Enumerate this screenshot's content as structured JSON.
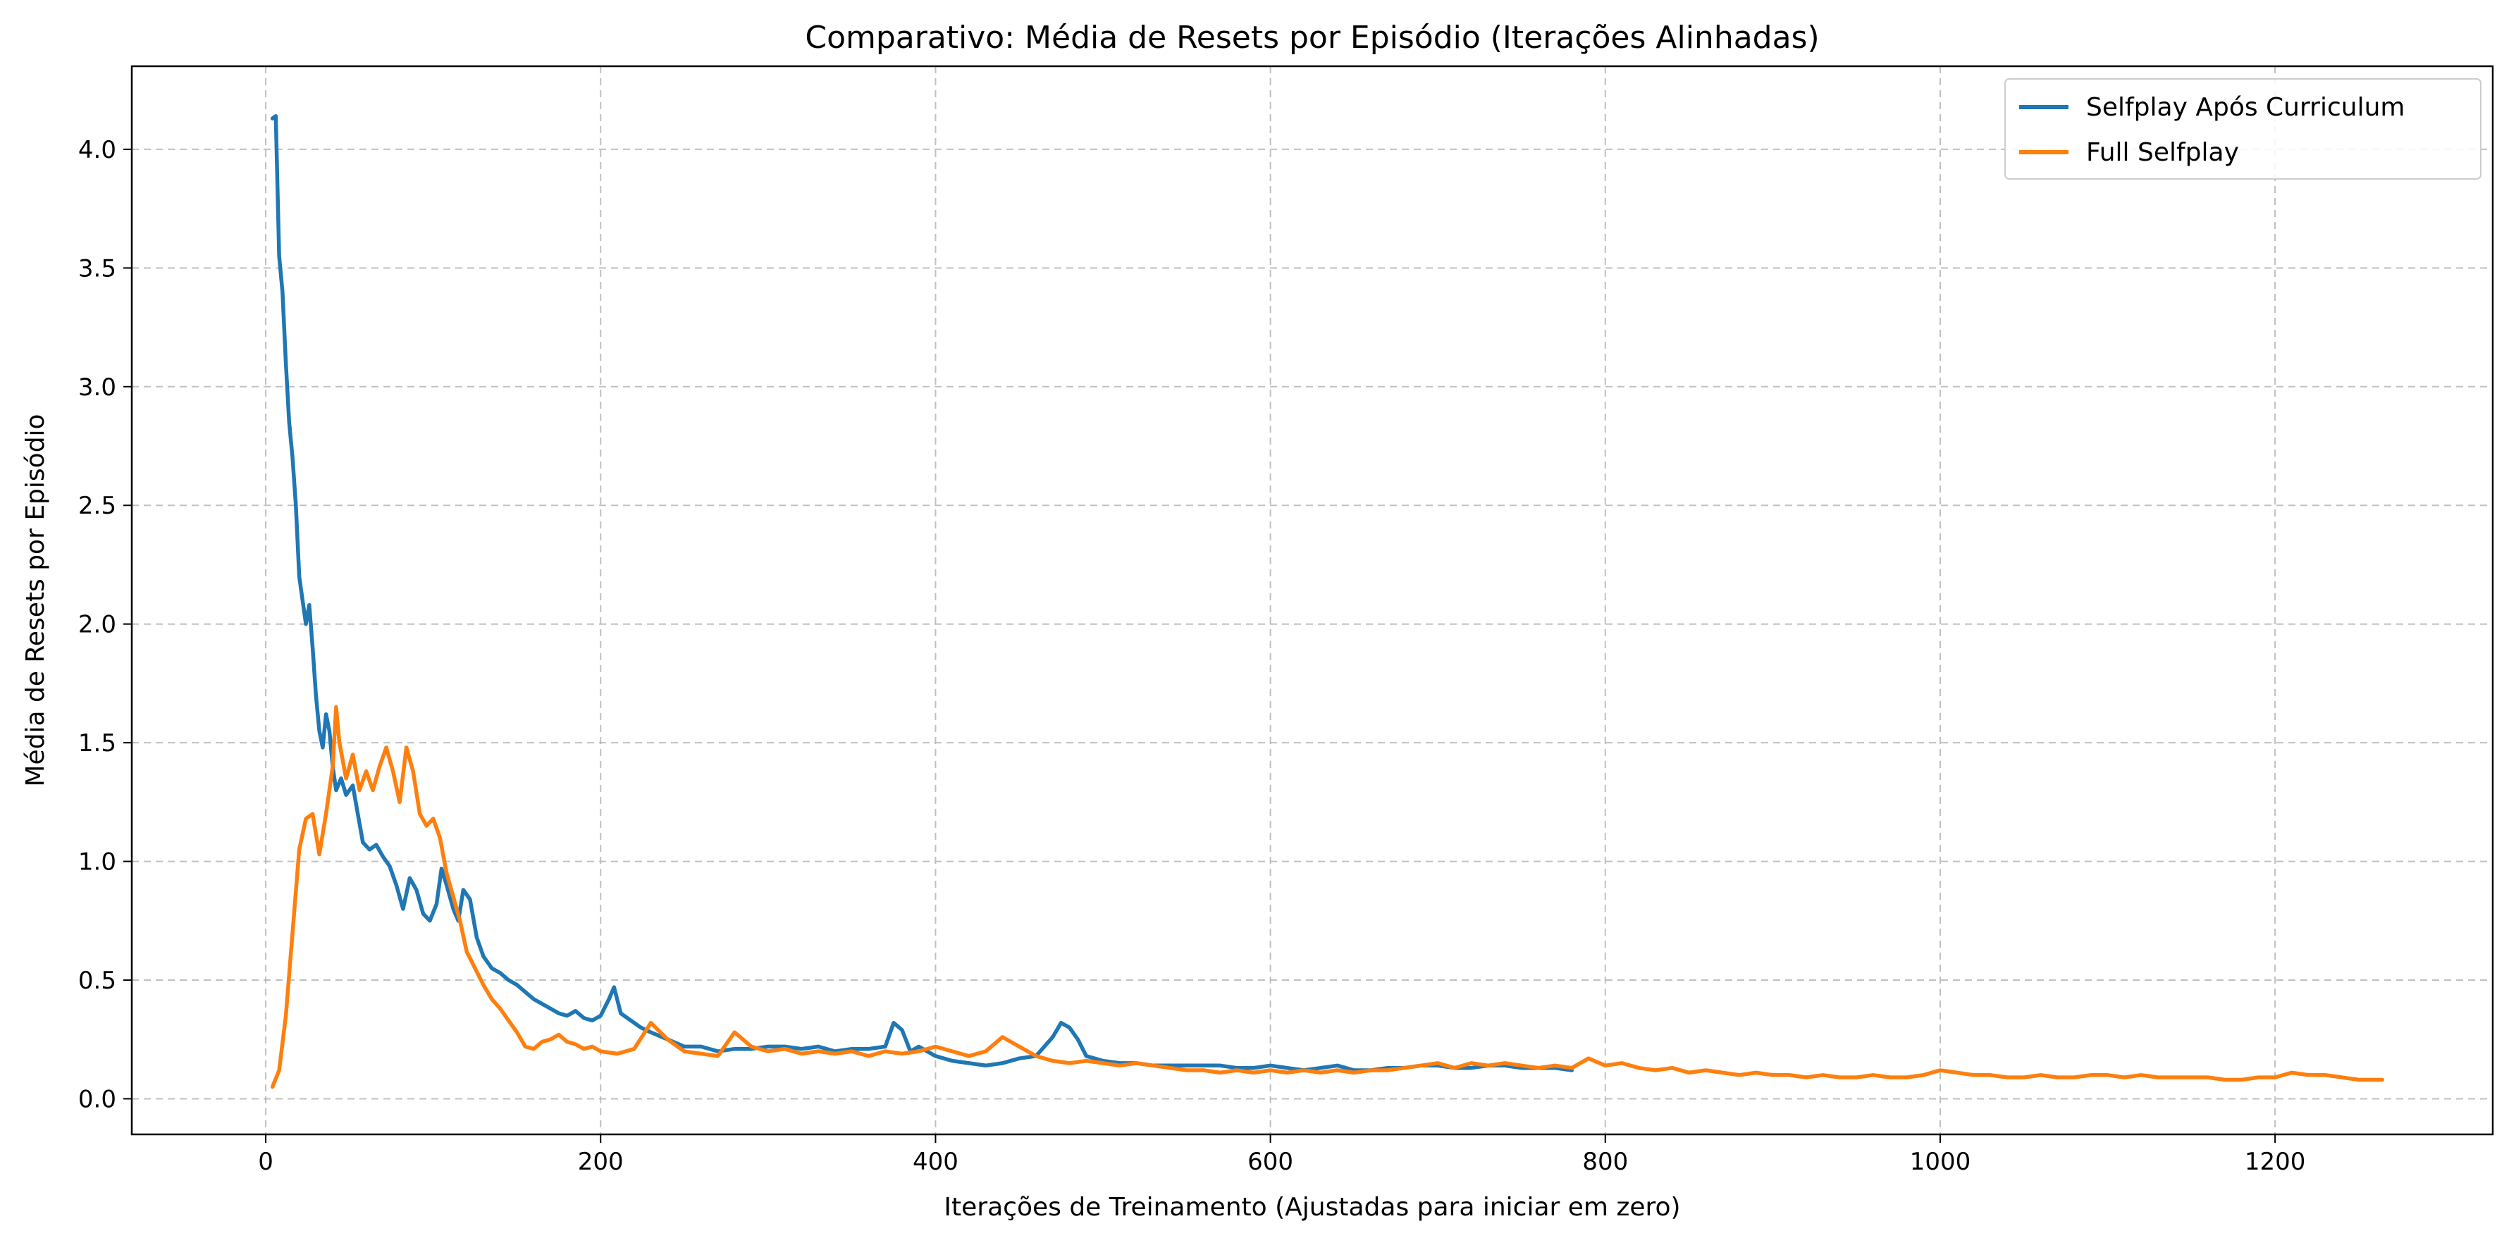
{
  "chart_data": {
    "type": "line",
    "title": "Comparativo: Média de Resets por Episódio (Iterações Alinhadas)",
    "xlabel": "Iterações de Treinamento (Ajustadas para iniciar em zero)",
    "ylabel": "Média de Resets por Episódio",
    "xlim": [
      -80,
      1330
    ],
    "ylim": [
      -0.15,
      4.35
    ],
    "xticks": [
      0,
      200,
      400,
      600,
      800,
      1000,
      1200
    ],
    "yticks": [
      0.0,
      0.5,
      1.0,
      1.5,
      2.0,
      2.5,
      3.0,
      3.5,
      4.0
    ],
    "xtick_labels": [
      "0",
      "200",
      "400",
      "600",
      "800",
      "1000",
      "1200"
    ],
    "ytick_labels": [
      "0.0",
      "0.5",
      "1.0",
      "1.5",
      "2.0",
      "2.5",
      "3.0",
      "3.5",
      "4.0"
    ],
    "grid": true,
    "legend_position": "top-right",
    "series": [
      {
        "name": "Selfplay Após Curriculum",
        "color": "#1f77b4",
        "points": [
          [
            4,
            4.13
          ],
          [
            6,
            4.14
          ],
          [
            8,
            3.55
          ],
          [
            10,
            3.4
          ],
          [
            12,
            3.1
          ],
          [
            14,
            2.85
          ],
          [
            16,
            2.7
          ],
          [
            18,
            2.5
          ],
          [
            20,
            2.2
          ],
          [
            22,
            2.1
          ],
          [
            24,
            2.0
          ],
          [
            26,
            2.08
          ],
          [
            28,
            1.9
          ],
          [
            30,
            1.7
          ],
          [
            32,
            1.55
          ],
          [
            34,
            1.48
          ],
          [
            36,
            1.62
          ],
          [
            38,
            1.55
          ],
          [
            40,
            1.4
          ],
          [
            42,
            1.3
          ],
          [
            45,
            1.35
          ],
          [
            48,
            1.28
          ],
          [
            52,
            1.32
          ],
          [
            55,
            1.2
          ],
          [
            58,
            1.08
          ],
          [
            62,
            1.05
          ],
          [
            66,
            1.07
          ],
          [
            70,
            1.02
          ],
          [
            74,
            0.98
          ],
          [
            78,
            0.9
          ],
          [
            82,
            0.8
          ],
          [
            86,
            0.93
          ],
          [
            90,
            0.88
          ],
          [
            94,
            0.78
          ],
          [
            98,
            0.75
          ],
          [
            102,
            0.82
          ],
          [
            105,
            0.97
          ],
          [
            108,
            0.9
          ],
          [
            112,
            0.8
          ],
          [
            115,
            0.75
          ],
          [
            118,
            0.88
          ],
          [
            122,
            0.84
          ],
          [
            126,
            0.68
          ],
          [
            130,
            0.6
          ],
          [
            135,
            0.55
          ],
          [
            140,
            0.53
          ],
          [
            145,
            0.5
          ],
          [
            150,
            0.48
          ],
          [
            155,
            0.45
          ],
          [
            160,
            0.42
          ],
          [
            165,
            0.4
          ],
          [
            170,
            0.38
          ],
          [
            175,
            0.36
          ],
          [
            180,
            0.35
          ],
          [
            185,
            0.37
          ],
          [
            190,
            0.34
          ],
          [
            195,
            0.33
          ],
          [
            200,
            0.35
          ],
          [
            205,
            0.42
          ],
          [
            208,
            0.47
          ],
          [
            212,
            0.36
          ],
          [
            218,
            0.33
          ],
          [
            224,
            0.3
          ],
          [
            230,
            0.28
          ],
          [
            240,
            0.25
          ],
          [
            250,
            0.22
          ],
          [
            260,
            0.22
          ],
          [
            270,
            0.2
          ],
          [
            280,
            0.21
          ],
          [
            290,
            0.21
          ],
          [
            300,
            0.22
          ],
          [
            310,
            0.22
          ],
          [
            320,
            0.21
          ],
          [
            330,
            0.22
          ],
          [
            340,
            0.2
          ],
          [
            350,
            0.21
          ],
          [
            360,
            0.21
          ],
          [
            370,
            0.22
          ],
          [
            375,
            0.32
          ],
          [
            380,
            0.29
          ],
          [
            385,
            0.2
          ],
          [
            390,
            0.22
          ],
          [
            400,
            0.18
          ],
          [
            410,
            0.16
          ],
          [
            420,
            0.15
          ],
          [
            430,
            0.14
          ],
          [
            440,
            0.15
          ],
          [
            450,
            0.17
          ],
          [
            460,
            0.18
          ],
          [
            470,
            0.26
          ],
          [
            475,
            0.32
          ],
          [
            480,
            0.3
          ],
          [
            485,
            0.25
          ],
          [
            490,
            0.18
          ],
          [
            500,
            0.16
          ],
          [
            510,
            0.15
          ],
          [
            520,
            0.15
          ],
          [
            530,
            0.14
          ],
          [
            540,
            0.14
          ],
          [
            550,
            0.14
          ],
          [
            560,
            0.14
          ],
          [
            570,
            0.14
          ],
          [
            580,
            0.13
          ],
          [
            590,
            0.13
          ],
          [
            600,
            0.14
          ],
          [
            610,
            0.13
          ],
          [
            620,
            0.12
          ],
          [
            630,
            0.13
          ],
          [
            640,
            0.14
          ],
          [
            650,
            0.12
          ],
          [
            660,
            0.12
          ],
          [
            670,
            0.13
          ],
          [
            680,
            0.13
          ],
          [
            690,
            0.14
          ],
          [
            700,
            0.14
          ],
          [
            710,
            0.13
          ],
          [
            720,
            0.13
          ],
          [
            730,
            0.14
          ],
          [
            740,
            0.14
          ],
          [
            750,
            0.13
          ],
          [
            760,
            0.13
          ],
          [
            770,
            0.13
          ],
          [
            780,
            0.12
          ]
        ]
      },
      {
        "name": "Full Selfplay",
        "color": "#ff7f0e",
        "points": [
          [
            4,
            0.05
          ],
          [
            8,
            0.12
          ],
          [
            12,
            0.35
          ],
          [
            16,
            0.7
          ],
          [
            20,
            1.05
          ],
          [
            24,
            1.18
          ],
          [
            28,
            1.2
          ],
          [
            32,
            1.03
          ],
          [
            36,
            1.2
          ],
          [
            40,
            1.4
          ],
          [
            42,
            1.65
          ],
          [
            44,
            1.5
          ],
          [
            48,
            1.35
          ],
          [
            52,
            1.45
          ],
          [
            56,
            1.3
          ],
          [
            60,
            1.38
          ],
          [
            64,
            1.3
          ],
          [
            68,
            1.4
          ],
          [
            72,
            1.48
          ],
          [
            76,
            1.38
          ],
          [
            80,
            1.25
          ],
          [
            84,
            1.48
          ],
          [
            88,
            1.38
          ],
          [
            92,
            1.2
          ],
          [
            96,
            1.15
          ],
          [
            100,
            1.18
          ],
          [
            104,
            1.1
          ],
          [
            108,
            0.95
          ],
          [
            112,
            0.85
          ],
          [
            116,
            0.75
          ],
          [
            120,
            0.62
          ],
          [
            125,
            0.55
          ],
          [
            130,
            0.48
          ],
          [
            135,
            0.42
          ],
          [
            140,
            0.38
          ],
          [
            145,
            0.33
          ],
          [
            150,
            0.28
          ],
          [
            155,
            0.22
          ],
          [
            160,
            0.21
          ],
          [
            165,
            0.24
          ],
          [
            170,
            0.25
          ],
          [
            175,
            0.27
          ],
          [
            180,
            0.24
          ],
          [
            185,
            0.23
          ],
          [
            190,
            0.21
          ],
          [
            195,
            0.22
          ],
          [
            200,
            0.2
          ],
          [
            210,
            0.19
          ],
          [
            220,
            0.21
          ],
          [
            230,
            0.32
          ],
          [
            240,
            0.25
          ],
          [
            250,
            0.2
          ],
          [
            260,
            0.19
          ],
          [
            270,
            0.18
          ],
          [
            280,
            0.28
          ],
          [
            290,
            0.22
          ],
          [
            300,
            0.2
          ],
          [
            310,
            0.21
          ],
          [
            320,
            0.19
          ],
          [
            330,
            0.2
          ],
          [
            340,
            0.19
          ],
          [
            350,
            0.2
          ],
          [
            360,
            0.18
          ],
          [
            370,
            0.2
          ],
          [
            380,
            0.19
          ],
          [
            390,
            0.2
          ],
          [
            400,
            0.22
          ],
          [
            410,
            0.2
          ],
          [
            420,
            0.18
          ],
          [
            430,
            0.2
          ],
          [
            440,
            0.26
          ],
          [
            450,
            0.22
          ],
          [
            460,
            0.18
          ],
          [
            470,
            0.16
          ],
          [
            480,
            0.15
          ],
          [
            490,
            0.16
          ],
          [
            500,
            0.15
          ],
          [
            510,
            0.14
          ],
          [
            520,
            0.15
          ],
          [
            530,
            0.14
          ],
          [
            540,
            0.13
          ],
          [
            550,
            0.12
          ],
          [
            560,
            0.12
          ],
          [
            570,
            0.11
          ],
          [
            580,
            0.12
          ],
          [
            590,
            0.11
          ],
          [
            600,
            0.12
          ],
          [
            610,
            0.11
          ],
          [
            620,
            0.12
          ],
          [
            630,
            0.11
          ],
          [
            640,
            0.12
          ],
          [
            650,
            0.11
          ],
          [
            660,
            0.12
          ],
          [
            670,
            0.12
          ],
          [
            680,
            0.13
          ],
          [
            690,
            0.14
          ],
          [
            700,
            0.15
          ],
          [
            710,
            0.13
          ],
          [
            720,
            0.15
          ],
          [
            730,
            0.14
          ],
          [
            740,
            0.15
          ],
          [
            750,
            0.14
          ],
          [
            760,
            0.13
          ],
          [
            770,
            0.14
          ],
          [
            780,
            0.13
          ],
          [
            790,
            0.17
          ],
          [
            800,
            0.14
          ],
          [
            810,
            0.15
          ],
          [
            820,
            0.13
          ],
          [
            830,
            0.12
          ],
          [
            840,
            0.13
          ],
          [
            850,
            0.11
          ],
          [
            860,
            0.12
          ],
          [
            870,
            0.11
          ],
          [
            880,
            0.1
          ],
          [
            890,
            0.11
          ],
          [
            900,
            0.1
          ],
          [
            910,
            0.1
          ],
          [
            920,
            0.09
          ],
          [
            930,
            0.1
          ],
          [
            940,
            0.09
          ],
          [
            950,
            0.09
          ],
          [
            960,
            0.1
          ],
          [
            970,
            0.09
          ],
          [
            980,
            0.09
          ],
          [
            990,
            0.1
          ],
          [
            1000,
            0.12
          ],
          [
            1010,
            0.11
          ],
          [
            1020,
            0.1
          ],
          [
            1030,
            0.1
          ],
          [
            1040,
            0.09
          ],
          [
            1050,
            0.09
          ],
          [
            1060,
            0.1
          ],
          [
            1070,
            0.09
          ],
          [
            1080,
            0.09
          ],
          [
            1090,
            0.1
          ],
          [
            1100,
            0.1
          ],
          [
            1110,
            0.09
          ],
          [
            1120,
            0.1
          ],
          [
            1130,
            0.09
          ],
          [
            1140,
            0.09
          ],
          [
            1150,
            0.09
          ],
          [
            1160,
            0.09
          ],
          [
            1170,
            0.08
          ],
          [
            1180,
            0.08
          ],
          [
            1190,
            0.09
          ],
          [
            1200,
            0.09
          ],
          [
            1210,
            0.11
          ],
          [
            1220,
            0.1
          ],
          [
            1230,
            0.1
          ],
          [
            1240,
            0.09
          ],
          [
            1250,
            0.08
          ],
          [
            1260,
            0.08
          ],
          [
            1264,
            0.08
          ]
        ]
      }
    ]
  }
}
